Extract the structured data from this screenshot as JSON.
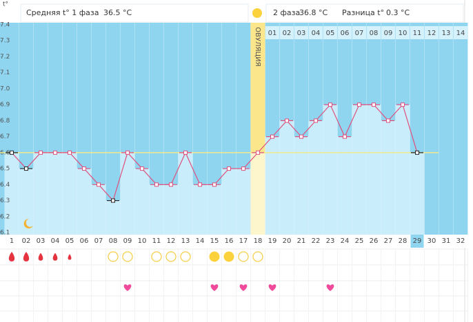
{
  "header": {
    "axis_unit": "t°",
    "phase1_label": "Средняя t° 1 фаза",
    "phase1_value": "36.5 °C",
    "phase2_label": "2 фаза",
    "phase2_value": "36.8 °C",
    "diff_label": "Разница t°",
    "diff_value": "0.3 °C"
  },
  "chart_data": {
    "type": "line",
    "ovulation_label": "ОВУЛЯЦИЯ",
    "categories": [
      "1",
      "02",
      "03",
      "04",
      "05",
      "06",
      "07",
      "08",
      "09",
      "10",
      "11",
      "12",
      "13",
      "14",
      "15",
      "16",
      "17",
      "18",
      "19",
      "20",
      "21",
      "22",
      "23",
      "24",
      "25",
      "26",
      "27",
      "28",
      "29",
      "30",
      "31",
      "32"
    ],
    "values": [
      6.6,
      6.5,
      6.6,
      6.6,
      6.6,
      6.5,
      6.4,
      6.3,
      6.6,
      6.5,
      6.4,
      6.4,
      6.6,
      6.4,
      6.4,
      6.5,
      6.5,
      6.6,
      6.7,
      6.8,
      6.7,
      6.8,
      6.9,
      6.7,
      6.9,
      6.9,
      6.8,
      6.9,
      6.6,
      null,
      null,
      null
    ],
    "point_colors": [
      "#222",
      "#222",
      "#e0507c",
      "#e0507c",
      "#e0507c",
      "#e0507c",
      "#e0507c",
      "#222",
      "#e0507c",
      "#e0507c",
      "#e0507c",
      "#e0507c",
      "#e0507c",
      "#e0507c",
      "#e0507c",
      "#e0507c",
      "#e0507c",
      "#e0507c",
      "#e0507c",
      "#e0507c",
      "#e0507c",
      "#e0507c",
      "#e0507c",
      "#e0507c",
      "#e0507c",
      "#e0507c",
      "#e0507c",
      "#e0507c",
      "#222",
      null,
      null,
      null
    ],
    "line_color": "#e0507c",
    "bar_color": "#c9edfb",
    "background_color": "#8fd5f0",
    "coverline": 6.6,
    "coverline_color": "#f2ea8a",
    "ovulation_day": 18,
    "highlight_day": 29,
    "phase2_days": [
      "01",
      "02",
      "03",
      "04",
      "05",
      "06",
      "07",
      "08",
      "09",
      "10",
      "11",
      "12",
      "13",
      "14"
    ],
    "ylim": [
      6.1,
      7.4
    ],
    "yticks": [
      6.1,
      6.2,
      6.3,
      6.4,
      6.5,
      6.6,
      6.7,
      6.8,
      6.9,
      {
        "value": 7,
        "label": "7.0"
      },
      7.1,
      7.2,
      7.3,
      7.4
    ],
    "bleeding_days": [
      1,
      2,
      3,
      4,
      5
    ],
    "mucus_days": [
      8,
      9,
      11,
      12,
      13,
      17,
      18
    ],
    "mucus_filled_days": [
      15,
      16
    ],
    "intercourse_days": [
      9,
      15,
      17,
      19,
      23
    ]
  }
}
